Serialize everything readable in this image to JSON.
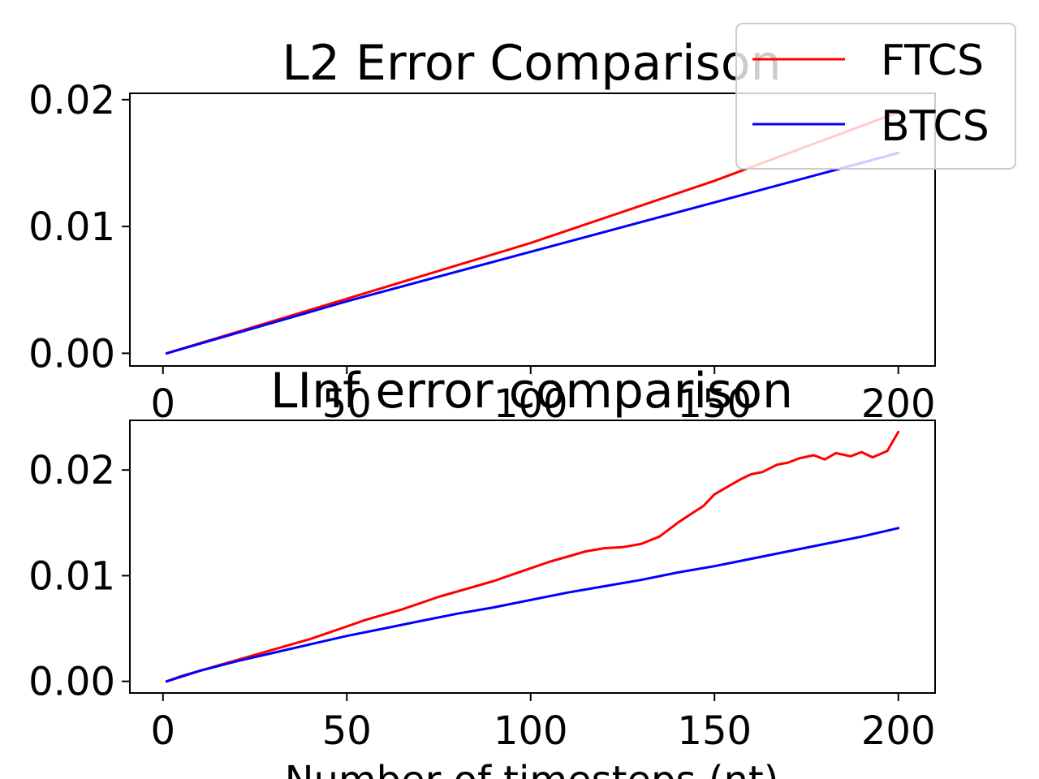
{
  "chart_data": [
    {
      "type": "line",
      "title": "L2 Error Comparison",
      "xlabel": "",
      "ylabel": "",
      "xlim": [
        -9,
        210
      ],
      "ylim": [
        -0.001,
        0.0205
      ],
      "xticks": [
        0,
        50,
        100,
        150,
        200
      ],
      "xtick_labels": [
        "0",
        "50",
        "100",
        "150",
        "200"
      ],
      "yticks": [
        0.0,
        0.01,
        0.02
      ],
      "ytick_labels": [
        "0.00",
        "0.01",
        "0.02"
      ],
      "grid": false,
      "series": [
        {
          "name": "FTCS",
          "color": "#ff0000",
          "x": [
            1,
            50,
            100,
            150,
            200
          ],
          "y": [
            0.0,
            0.0043,
            0.0087,
            0.0136,
            0.019
          ]
        },
        {
          "name": "BTCS",
          "color": "#0000ff",
          "x": [
            1,
            50,
            100,
            150,
            200
          ],
          "y": [
            0.0,
            0.0041,
            0.008,
            0.0119,
            0.0158
          ]
        }
      ]
    },
    {
      "type": "line",
      "title": "LInf error comparison",
      "xlabel": "Number of timesteps (nt)",
      "ylabel": "",
      "xlim": [
        -9,
        210
      ],
      "ylim": [
        -0.0011,
        0.0247
      ],
      "xticks": [
        0,
        50,
        100,
        150,
        200
      ],
      "xtick_labels": [
        "0",
        "50",
        "100",
        "150",
        "200"
      ],
      "yticks": [
        0.0,
        0.01,
        0.02
      ],
      "ytick_labels": [
        "0.00",
        "0.01",
        "0.02"
      ],
      "grid": false,
      "series": [
        {
          "name": "FTCS",
          "color": "#ff0000",
          "x": [
            1,
            5,
            10,
            15,
            20,
            25,
            30,
            35,
            40,
            45,
            50,
            55,
            60,
            65,
            70,
            75,
            80,
            85,
            90,
            95,
            100,
            105,
            110,
            115,
            120,
            125,
            130,
            135,
            140,
            143,
            147,
            150,
            153,
            157,
            160,
            163,
            167,
            170,
            173,
            177,
            180,
            183,
            187,
            190,
            193,
            197,
            200
          ],
          "y": [
            0.0,
            0.0005,
            0.001,
            0.0015,
            0.002,
            0.0025,
            0.003,
            0.0035,
            0.004,
            0.0046,
            0.0052,
            0.0058,
            0.0063,
            0.0068,
            0.0074,
            0.008,
            0.0085,
            0.009,
            0.0095,
            0.0101,
            0.0107,
            0.0113,
            0.0118,
            0.0123,
            0.0126,
            0.0127,
            0.013,
            0.0137,
            0.015,
            0.0157,
            0.0166,
            0.0177,
            0.0183,
            0.0191,
            0.0196,
            0.0198,
            0.0205,
            0.0207,
            0.0211,
            0.0214,
            0.021,
            0.0216,
            0.0213,
            0.0217,
            0.0212,
            0.0218,
            0.0236
          ]
        },
        {
          "name": "BTCS",
          "color": "#0000ff",
          "x": [
            1,
            10,
            20,
            30,
            40,
            50,
            60,
            70,
            80,
            90,
            100,
            110,
            120,
            130,
            140,
            150,
            160,
            170,
            180,
            190,
            200
          ],
          "y": [
            0.0,
            0.001,
            0.0019,
            0.0027,
            0.0035,
            0.0043,
            0.005,
            0.0057,
            0.0064,
            0.007,
            0.0077,
            0.0084,
            0.009,
            0.0096,
            0.0103,
            0.0109,
            0.0116,
            0.0123,
            0.013,
            0.0137,
            0.0145
          ]
        }
      ]
    }
  ],
  "legend": {
    "placement": "top-right",
    "entries": [
      {
        "label": "FTCS",
        "color": "#ff0000"
      },
      {
        "label": "BTCS",
        "color": "#0000ff"
      }
    ]
  }
}
